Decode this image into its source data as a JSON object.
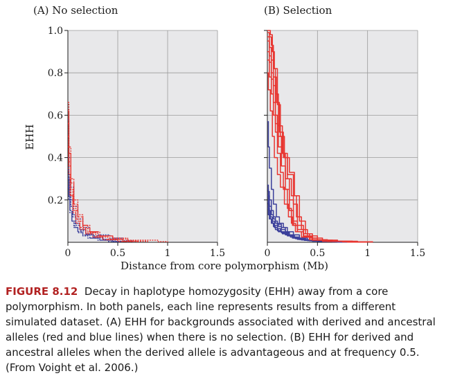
{
  "figure": {
    "xlabel": "Distance from core polymorphism (Mb)",
    "ylabel": "EHH",
    "colors": {
      "derived": "#e8342f",
      "ancestral": "#3b3f9b",
      "grid": "#9a9a9a",
      "panel_bg": "#e8e8ea"
    }
  },
  "caption": {
    "label": "FIGURE 8.12",
    "text": "Decay in haplotype homozygosity (EHH) away from a core polymorphism. In both panels, each line represents results from a different simulated dataset. (A) EHH for backgrounds associated with derived and ancestral alleles (red and blue lines) when there is no selection. (B) EHH for derived and ancestral alleles when the derived allele is advantageous and at frequency 0.5. (From Voight et al. 2006.)"
  },
  "chart_data": [
    {
      "type": "line",
      "title": "(A) No selection",
      "xlim": [
        0,
        1.5
      ],
      "ylim": [
        0,
        1.0
      ],
      "xticks": [
        "0",
        "0.5",
        "1",
        "1.5"
      ],
      "yticks": [
        "0.2",
        "0.4",
        "0.6",
        "0.8",
        "1.0"
      ],
      "grid": true,
      "series": [
        {
          "color": "derived",
          "style": "dotted",
          "x": [
            0,
            0.01,
            0.03,
            0.06,
            0.1,
            0.15,
            0.2,
            0.3,
            0.45,
            0.6,
            0.8
          ],
          "y": [
            0.66,
            0.45,
            0.3,
            0.2,
            0.13,
            0.08,
            0.05,
            0.03,
            0.015,
            0.005,
            0
          ]
        },
        {
          "color": "derived",
          "style": "dotted",
          "x": [
            0,
            0.01,
            0.03,
            0.06,
            0.1,
            0.15,
            0.22,
            0.32,
            0.45,
            0.6,
            0.9,
            1.0
          ],
          "y": [
            0.62,
            0.42,
            0.28,
            0.18,
            0.12,
            0.08,
            0.05,
            0.03,
            0.02,
            0.01,
            0.003,
            0
          ]
        },
        {
          "color": "derived",
          "style": "dotted",
          "x": [
            0,
            0.01,
            0.03,
            0.05,
            0.08,
            0.12,
            0.18,
            0.28,
            0.4,
            0.55,
            0.7
          ],
          "y": [
            0.56,
            0.38,
            0.25,
            0.17,
            0.11,
            0.07,
            0.045,
            0.025,
            0.012,
            0.005,
            0
          ]
        },
        {
          "color": "derived",
          "style": "dotted",
          "x": [
            0,
            0.01,
            0.03,
            0.06,
            0.1,
            0.15,
            0.22,
            0.3,
            0.42,
            0.55,
            0.7
          ],
          "y": [
            0.5,
            0.36,
            0.22,
            0.15,
            0.1,
            0.065,
            0.045,
            0.03,
            0.015,
            0.006,
            0
          ]
        },
        {
          "color": "derived",
          "style": "dotted",
          "x": [
            0,
            0.01,
            0.02,
            0.05,
            0.08,
            0.12,
            0.18,
            0.25,
            0.35,
            0.5,
            0.65
          ],
          "y": [
            0.45,
            0.32,
            0.22,
            0.14,
            0.09,
            0.06,
            0.04,
            0.025,
            0.012,
            0.004,
            0
          ]
        },
        {
          "color": "ancestral",
          "style": "dotted",
          "x": [
            0,
            0.01,
            0.03,
            0.06,
            0.1,
            0.15,
            0.22,
            0.3,
            0.42,
            0.55,
            0.65
          ],
          "y": [
            0.58,
            0.4,
            0.26,
            0.17,
            0.11,
            0.07,
            0.05,
            0.035,
            0.02,
            0.008,
            0
          ]
        },
        {
          "color": "ancestral",
          "style": "dotted",
          "x": [
            0,
            0.01,
            0.02,
            0.05,
            0.08,
            0.12,
            0.18,
            0.25,
            0.35,
            0.5,
            0.6
          ],
          "y": [
            0.4,
            0.3,
            0.2,
            0.13,
            0.09,
            0.06,
            0.04,
            0.03,
            0.015,
            0.005,
            0
          ]
        },
        {
          "color": "ancestral",
          "style": "dotted",
          "x": [
            0,
            0.01,
            0.03,
            0.05,
            0.08,
            0.12,
            0.18,
            0.26,
            0.36,
            0.48,
            0.6
          ],
          "y": [
            0.34,
            0.25,
            0.17,
            0.12,
            0.08,
            0.055,
            0.035,
            0.02,
            0.01,
            0.004,
            0
          ]
        },
        {
          "color": "ancestral",
          "style": "dotted",
          "x": [
            0,
            0.01,
            0.02,
            0.04,
            0.07,
            0.1,
            0.15,
            0.22,
            0.32,
            0.45,
            0.55
          ],
          "y": [
            0.3,
            0.22,
            0.15,
            0.1,
            0.07,
            0.05,
            0.035,
            0.02,
            0.01,
            0.003,
            0
          ]
        },
        {
          "color": "ancestral",
          "style": "dotted",
          "x": [
            0,
            0.01,
            0.02,
            0.04,
            0.06,
            0.1,
            0.15,
            0.2,
            0.3,
            0.4,
            0.5
          ],
          "y": [
            0.26,
            0.2,
            0.14,
            0.1,
            0.07,
            0.045,
            0.03,
            0.02,
            0.01,
            0.004,
            0
          ]
        }
      ]
    },
    {
      "type": "line",
      "title": "(B) Selection",
      "xlim": [
        0,
        1.5
      ],
      "ylim": [
        0,
        1.0
      ],
      "xticks": [
        "0",
        "0.5",
        "1",
        "1.5"
      ],
      "yticks": [
        "0.2",
        "0.4",
        "0.6",
        "0.8",
        "1.0"
      ],
      "grid": true,
      "series": [
        {
          "color": "derived",
          "style": "solid",
          "x": [
            0,
            0.02,
            0.03,
            0.05,
            0.07,
            0.1,
            0.13,
            0.17,
            0.22,
            0.27,
            0.32,
            0.38,
            0.45,
            0.55,
            0.7,
            0.9,
            1.05
          ],
          "y": [
            1.0,
            1.0,
            0.98,
            0.9,
            0.82,
            0.65,
            0.5,
            0.4,
            0.33,
            0.22,
            0.1,
            0.04,
            0.02,
            0.01,
            0.005,
            0.002,
            0
          ]
        },
        {
          "color": "derived",
          "style": "solid",
          "x": [
            0,
            0.02,
            0.04,
            0.06,
            0.08,
            0.11,
            0.15,
            0.2,
            0.26,
            0.3,
            0.36,
            0.42,
            0.5,
            0.65,
            0.85,
            1.05
          ],
          "y": [
            0.99,
            0.97,
            0.93,
            0.82,
            0.7,
            0.55,
            0.42,
            0.32,
            0.18,
            0.08,
            0.04,
            0.02,
            0.01,
            0.005,
            0.002,
            0
          ]
        },
        {
          "color": "derived",
          "style": "solid",
          "x": [
            0,
            0.02,
            0.04,
            0.06,
            0.09,
            0.12,
            0.16,
            0.2,
            0.24,
            0.29,
            0.34,
            0.4,
            0.5,
            0.65,
            0.85,
            1.05
          ],
          "y": [
            0.97,
            0.92,
            0.86,
            0.78,
            0.66,
            0.52,
            0.4,
            0.3,
            0.22,
            0.12,
            0.06,
            0.03,
            0.01,
            0.005,
            0.002,
            0
          ]
        },
        {
          "color": "derived",
          "style": "solid",
          "x": [
            0,
            0.02,
            0.04,
            0.06,
            0.08,
            0.1,
            0.14,
            0.18,
            0.22,
            0.26,
            0.3,
            0.36,
            0.45,
            0.6,
            0.8,
            1.0
          ],
          "y": [
            0.95,
            0.88,
            0.8,
            0.74,
            0.6,
            0.5,
            0.42,
            0.3,
            0.2,
            0.1,
            0.06,
            0.03,
            0.012,
            0.005,
            0.002,
            0
          ]
        },
        {
          "color": "derived",
          "style": "solid",
          "x": [
            0,
            0.02,
            0.04,
            0.06,
            0.08,
            0.11,
            0.14,
            0.18,
            0.22,
            0.26,
            0.3,
            0.36,
            0.45,
            0.6,
            0.8,
            1.0
          ],
          "y": [
            0.9,
            0.85,
            0.77,
            0.66,
            0.56,
            0.45,
            0.36,
            0.25,
            0.15,
            0.08,
            0.05,
            0.025,
            0.01,
            0.004,
            0.001,
            0
          ]
        },
        {
          "color": "derived",
          "style": "solid",
          "x": [
            0,
            0.02,
            0.04,
            0.06,
            0.08,
            0.1,
            0.13,
            0.16,
            0.2,
            0.24,
            0.28,
            0.34,
            0.42,
            0.55,
            0.75,
            0.95
          ],
          "y": [
            0.86,
            0.78,
            0.7,
            0.6,
            0.52,
            0.42,
            0.33,
            0.25,
            0.16,
            0.09,
            0.05,
            0.025,
            0.012,
            0.005,
            0.002,
            0
          ]
        },
        {
          "color": "derived",
          "style": "solid",
          "x": [
            0,
            0.01,
            0.03,
            0.05,
            0.07,
            0.1,
            0.13,
            0.17,
            0.21,
            0.25,
            0.3,
            0.36,
            0.45,
            0.6,
            0.8,
            1.0
          ],
          "y": [
            0.8,
            0.72,
            0.62,
            0.5,
            0.4,
            0.32,
            0.26,
            0.18,
            0.12,
            0.08,
            0.05,
            0.025,
            0.01,
            0.004,
            0.001,
            0
          ]
        },
        {
          "color": "ancestral",
          "style": "solid",
          "x": [
            0,
            0.01,
            0.02,
            0.04,
            0.06,
            0.09,
            0.12,
            0.16,
            0.2,
            0.26,
            0.32,
            0.4,
            0.5,
            0.65,
            0.85,
            1.0
          ],
          "y": [
            0.57,
            0.45,
            0.35,
            0.25,
            0.18,
            0.12,
            0.09,
            0.07,
            0.05,
            0.035,
            0.02,
            0.012,
            0.006,
            0.003,
            0.001,
            0
          ]
        },
        {
          "color": "ancestral",
          "style": "solid",
          "x": [
            0,
            0.01,
            0.02,
            0.04,
            0.06,
            0.08,
            0.1,
            0.14,
            0.18,
            0.22,
            0.27,
            0.32,
            0.38,
            0.45,
            0.55,
            0.7,
            0.9
          ],
          "y": [
            0.27,
            0.24,
            0.2,
            0.15,
            0.12,
            0.1,
            0.085,
            0.07,
            0.05,
            0.035,
            0.025,
            0.018,
            0.012,
            0.008,
            0.004,
            0.002,
            0
          ]
        },
        {
          "color": "ancestral",
          "style": "solid",
          "x": [
            0,
            0.01,
            0.02,
            0.04,
            0.06,
            0.08,
            0.11,
            0.14,
            0.18,
            0.22,
            0.26,
            0.3,
            0.36,
            0.44,
            0.55,
            0.7,
            0.9
          ],
          "y": [
            0.25,
            0.22,
            0.17,
            0.13,
            0.11,
            0.09,
            0.075,
            0.06,
            0.045,
            0.035,
            0.025,
            0.018,
            0.012,
            0.007,
            0.004,
            0.002,
            0
          ]
        },
        {
          "color": "ancestral",
          "style": "solid",
          "x": [
            0,
            0.01,
            0.02,
            0.03,
            0.05,
            0.07,
            0.1,
            0.13,
            0.17,
            0.21,
            0.26,
            0.32,
            0.4,
            0.5,
            0.65,
            0.85
          ],
          "y": [
            0.22,
            0.18,
            0.15,
            0.12,
            0.1,
            0.08,
            0.065,
            0.05,
            0.04,
            0.03,
            0.02,
            0.013,
            0.008,
            0.004,
            0.002,
            0
          ]
        },
        {
          "color": "ancestral",
          "style": "solid",
          "x": [
            0,
            0.01,
            0.02,
            0.03,
            0.05,
            0.07,
            0.1,
            0.14,
            0.18,
            0.23,
            0.28,
            0.34,
            0.42,
            0.52,
            0.68,
            0.85
          ],
          "y": [
            0.19,
            0.16,
            0.13,
            0.11,
            0.09,
            0.07,
            0.055,
            0.045,
            0.035,
            0.025,
            0.017,
            0.011,
            0.007,
            0.004,
            0.002,
            0
          ]
        },
        {
          "color": "ancestral",
          "style": "solid",
          "x": [
            0,
            0.01,
            0.02,
            0.04,
            0.06,
            0.08,
            0.11,
            0.15,
            0.2,
            0.25,
            0.3,
            0.37,
            0.45,
            0.55,
            0.7,
            0.85
          ],
          "y": [
            0.16,
            0.13,
            0.11,
            0.09,
            0.075,
            0.06,
            0.05,
            0.04,
            0.03,
            0.02,
            0.014,
            0.009,
            0.005,
            0.003,
            0.001,
            0
          ]
        }
      ]
    }
  ]
}
